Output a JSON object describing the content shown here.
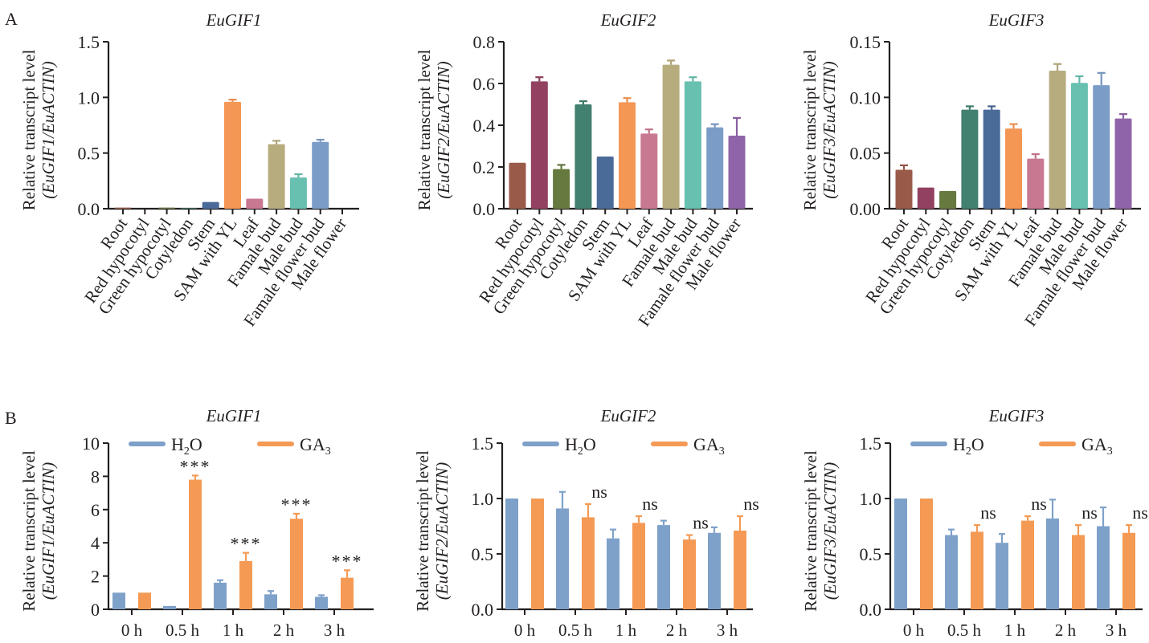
{
  "figure": {
    "panel_labels": [
      "A",
      "B"
    ]
  },
  "colors": {
    "tissue": [
      "#9a5a4a",
      "#924260",
      "#667a40",
      "#428070",
      "#4a6a98",
      "#f49654",
      "#c87890",
      "#b7ac7e",
      "#68c0b0",
      "#7c9cc8",
      "#9064a8"
    ],
    "h2o": "#7ea1c9",
    "ga3": "#f49a54",
    "axis": "#231f20"
  },
  "chart_data": [
    {
      "id": "A1",
      "type": "bar",
      "title": "EuGIF1",
      "ylabel_line1": "Relative transcript level",
      "ylabel_line2": "(EuGIF1/EuACTIN)",
      "ylim": [
        0,
        1.5
      ],
      "yticks": [
        "0.0",
        "0.5",
        "1.0",
        "1.5"
      ],
      "ytick_values": [
        0,
        0.5,
        1.0,
        1.5
      ],
      "categories": [
        "Root",
        "Red hypocotyl",
        "Green hypocotyl",
        "Cotyledon",
        "Stem",
        "SAM with YL",
        "Leaf",
        "Famale bud",
        "Male bud",
        "Famale flower bud",
        "Male flower"
      ],
      "values": [
        0.01,
        0.0,
        0.01,
        0.005,
        0.06,
        0.96,
        0.09,
        0.58,
        0.28,
        0.6,
        0.0
      ],
      "errors": [
        0.0,
        0.0,
        0.0,
        0.0,
        0.0,
        0.02,
        0.0,
        0.03,
        0.03,
        0.02,
        0.0
      ]
    },
    {
      "id": "A2",
      "type": "bar",
      "title": "EuGIF2",
      "ylabel_line1": "Relative transcript level",
      "ylabel_line2": "(EuGIF2/EuACTIN)",
      "ylim": [
        0,
        0.8
      ],
      "yticks": [
        "0.0",
        "0.2",
        "0.4",
        "0.6",
        "0.8"
      ],
      "ytick_values": [
        0,
        0.2,
        0.4,
        0.6,
        0.8
      ],
      "categories": [
        "Root",
        "Red hypocotyl",
        "Green hypocotyl",
        "Cotyledon",
        "Stem",
        "SAM with YL",
        "Leaf",
        "Famale bud",
        "Male bud",
        "Famale flower bud",
        "Male flower"
      ],
      "values": [
        0.22,
        0.61,
        0.19,
        0.5,
        0.25,
        0.51,
        0.36,
        0.69,
        0.61,
        0.39,
        0.35
      ],
      "errors": [
        0.0,
        0.02,
        0.02,
        0.015,
        0.0,
        0.02,
        0.02,
        0.02,
        0.02,
        0.015,
        0.085
      ]
    },
    {
      "id": "A3",
      "type": "bar",
      "title": "EuGIF3",
      "ylabel_line1": "Relative transcript level",
      "ylabel_line2": "(EuGIF3/EuACTIN)",
      "ylim": [
        0,
        0.15
      ],
      "yticks": [
        "0.00",
        "0.05",
        "0.10",
        "0.15"
      ],
      "ytick_values": [
        0,
        0.05,
        0.1,
        0.15
      ],
      "categories": [
        "Root",
        "Red hypocotyl",
        "Green hypocotyl",
        "Cotyledon",
        "Stem",
        "SAM with YL",
        "Leaf",
        "Famale bud",
        "Male bud",
        "Famale flower bud",
        "Male flower"
      ],
      "values": [
        0.035,
        0.019,
        0.016,
        0.089,
        0.089,
        0.072,
        0.045,
        0.124,
        0.113,
        0.111,
        0.081
      ],
      "errors": [
        0.004,
        0.0,
        0.0,
        0.003,
        0.003,
        0.004,
        0.004,
        0.006,
        0.006,
        0.011,
        0.004
      ]
    },
    {
      "id": "B1",
      "type": "bar",
      "title": "EuGIF1",
      "ylabel_line1": "Relative transcript level",
      "ylabel_line2": "(EuGIF1/EuACTIN)",
      "ylim": [
        0,
        10
      ],
      "yticks": [
        "0",
        "2",
        "4",
        "6",
        "8",
        "10"
      ],
      "ytick_values": [
        0,
        2,
        4,
        6,
        8,
        10
      ],
      "categories": [
        "0 h",
        "0.5 h",
        "1 h",
        "2 h",
        "3 h"
      ],
      "legend": [
        "H2O",
        "GA3"
      ],
      "legend_position": "top",
      "series": [
        {
          "name": "H2O",
          "values": [
            1.0,
            0.2,
            1.6,
            0.9,
            0.75
          ],
          "errors": [
            0.0,
            0.0,
            0.15,
            0.2,
            0.1
          ]
        },
        {
          "name": "GA3",
          "values": [
            1.0,
            7.8,
            2.9,
            5.45,
            1.9
          ],
          "errors": [
            0.0,
            0.25,
            0.5,
            0.3,
            0.45
          ]
        }
      ],
      "annotations": [
        "",
        "***",
        "***",
        "***",
        "***"
      ]
    },
    {
      "id": "B2",
      "type": "bar",
      "title": "EuGIF2",
      "ylabel_line1": "Relative transcript level",
      "ylabel_line2": "(EuGIF2/EuACTIN)",
      "ylim": [
        0,
        1.5
      ],
      "yticks": [
        "0.0",
        "0.5",
        "1.0",
        "1.5"
      ],
      "ytick_values": [
        0,
        0.5,
        1.0,
        1.5
      ],
      "categories": [
        "0 h",
        "0.5 h",
        "1 h",
        "2 h",
        "3 h"
      ],
      "legend": [
        "H2O",
        "GA3"
      ],
      "legend_position": "top",
      "series": [
        {
          "name": "H2O",
          "values": [
            1.0,
            0.91,
            0.64,
            0.76,
            0.69
          ],
          "errors": [
            0.0,
            0.15,
            0.08,
            0.04,
            0.05
          ]
        },
        {
          "name": "GA3",
          "values": [
            1.0,
            0.83,
            0.78,
            0.63,
            0.71
          ],
          "errors": [
            0.0,
            0.12,
            0.06,
            0.04,
            0.13
          ]
        }
      ],
      "annotations": [
        "",
        "ns",
        "ns",
        "ns",
        "ns"
      ]
    },
    {
      "id": "B3",
      "type": "bar",
      "title": "EuGIF3",
      "ylabel_line1": "Relative transcript level",
      "ylabel_line2": "(EuGIF3/EuACTIN)",
      "ylim": [
        0,
        1.5
      ],
      "yticks": [
        "0.0",
        "0.5",
        "1.0",
        "1.5"
      ],
      "ytick_values": [
        0,
        0.5,
        1.0,
        1.5
      ],
      "categories": [
        "0 h",
        "0.5 h",
        "1 h",
        "2 h",
        "3 h"
      ],
      "legend": [
        "H2O",
        "GA3"
      ],
      "legend_position": "top",
      "series": [
        {
          "name": "H2O",
          "values": [
            1.0,
            0.67,
            0.6,
            0.82,
            0.75
          ],
          "errors": [
            0.0,
            0.05,
            0.08,
            0.17,
            0.17
          ]
        },
        {
          "name": "GA3",
          "values": [
            1.0,
            0.7,
            0.8,
            0.67,
            0.69
          ],
          "errors": [
            0.0,
            0.06,
            0.04,
            0.09,
            0.07
          ]
        }
      ],
      "annotations": [
        "",
        "ns",
        "ns",
        "ns",
        "ns"
      ]
    }
  ]
}
